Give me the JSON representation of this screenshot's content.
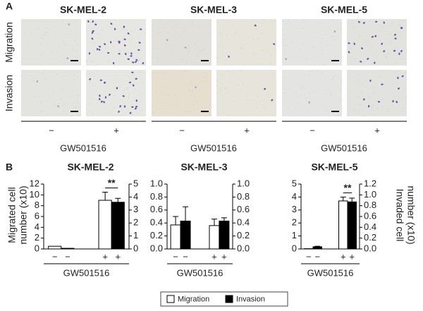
{
  "panel_a": {
    "label": "A",
    "rows": [
      "Migration",
      "Invasion"
    ],
    "columns": [
      {
        "title": "SK-MEL-2"
      },
      {
        "title": "SK-MEL-3"
      },
      {
        "title": "SK-MEL-5"
      }
    ],
    "treatments": [
      "−",
      "+"
    ],
    "treatment_label": "GW501516"
  },
  "panel_b_label": "B",
  "chart_data": [
    {
      "type": "bar",
      "title": "SK-MEL-2",
      "categories": [
        "−",
        "−",
        "+",
        "+"
      ],
      "xlabel": "GW501516",
      "ylabel": [
        "Migrated cell",
        "number (x10)"
      ],
      "ylim": [
        0,
        12
      ],
      "yticks": [
        0,
        2,
        4,
        6,
        8,
        10,
        12
      ],
      "y2lim": [
        0,
        5
      ],
      "y2ticks": [
        0,
        1,
        2,
        3,
        4,
        5
      ],
      "series": [
        {
          "name": "Migration",
          "color": "#ffffff",
          "values": [
            0.5,
            null,
            9.0,
            null
          ],
          "errors": [
            null,
            null,
            1.5,
            null
          ]
        },
        {
          "name": "Invasion",
          "color": "#000000",
          "axis": "y2",
          "values": [
            null,
            0.05,
            null,
            3.6
          ],
          "errors": [
            null,
            null,
            null,
            0.3
          ]
        }
      ],
      "annotations": [
        {
          "text": "**"
        }
      ]
    },
    {
      "type": "bar",
      "title": "SK-MEL-3",
      "categories": [
        "−",
        "−",
        "+",
        "+"
      ],
      "xlabel": "GW501516",
      "ylim": [
        0,
        1
      ],
      "yticks": [
        {
          "value": 0,
          "label": "0.0"
        },
        0.2,
        0.4,
        0.6,
        0.8,
        {
          "value": 1,
          "label": "1.0"
        }
      ],
      "y2lim": [
        0,
        1
      ],
      "y2ticks": [
        {
          "value": 0,
          "label": "0.0"
        },
        0.2,
        0.4,
        0.6,
        0.8,
        {
          "value": 1,
          "label": "1.0"
        }
      ],
      "series": [
        {
          "name": "Migration",
          "color": "#ffffff",
          "values": [
            0.37,
            null,
            0.36,
            null
          ],
          "errors": [
            0.13,
            null,
            0.1,
            null
          ]
        },
        {
          "name": "Invasion",
          "color": "#000000",
          "axis": "y2",
          "values": [
            null,
            0.43,
            null,
            0.43
          ],
          "errors": [
            null,
            0.22,
            null,
            0.05
          ]
        }
      ]
    },
    {
      "type": "bar",
      "title": "SK-MEL-5",
      "categories": [
        "−",
        "−",
        "+",
        "+"
      ],
      "xlabel": "GW501516",
      "y2label": [
        "Invaded cell",
        "number (x10)"
      ],
      "ylim": [
        0,
        5
      ],
      "yticks": [
        0,
        1,
        2,
        3,
        4,
        5
      ],
      "y2lim": [
        0,
        1.2
      ],
      "y2ticks": [
        {
          "value": 0,
          "label": "0.0"
        },
        0.2,
        0.4,
        0.6,
        0.8,
        {
          "value": 1,
          "label": "1.0"
        },
        1.2
      ],
      "series": [
        {
          "name": "Migration",
          "color": "#ffffff",
          "values": [
            0.02,
            null,
            3.7,
            null
          ],
          "errors": [
            null,
            null,
            0.3,
            null
          ]
        },
        {
          "name": "Invasion",
          "color": "#000000",
          "axis": "y2",
          "values": [
            null,
            0.04,
            null,
            0.87
          ],
          "errors": [
            null,
            0.01,
            null,
            0.07
          ]
        }
      ],
      "annotations": [
        {
          "text": "**"
        }
      ]
    }
  ]
}
